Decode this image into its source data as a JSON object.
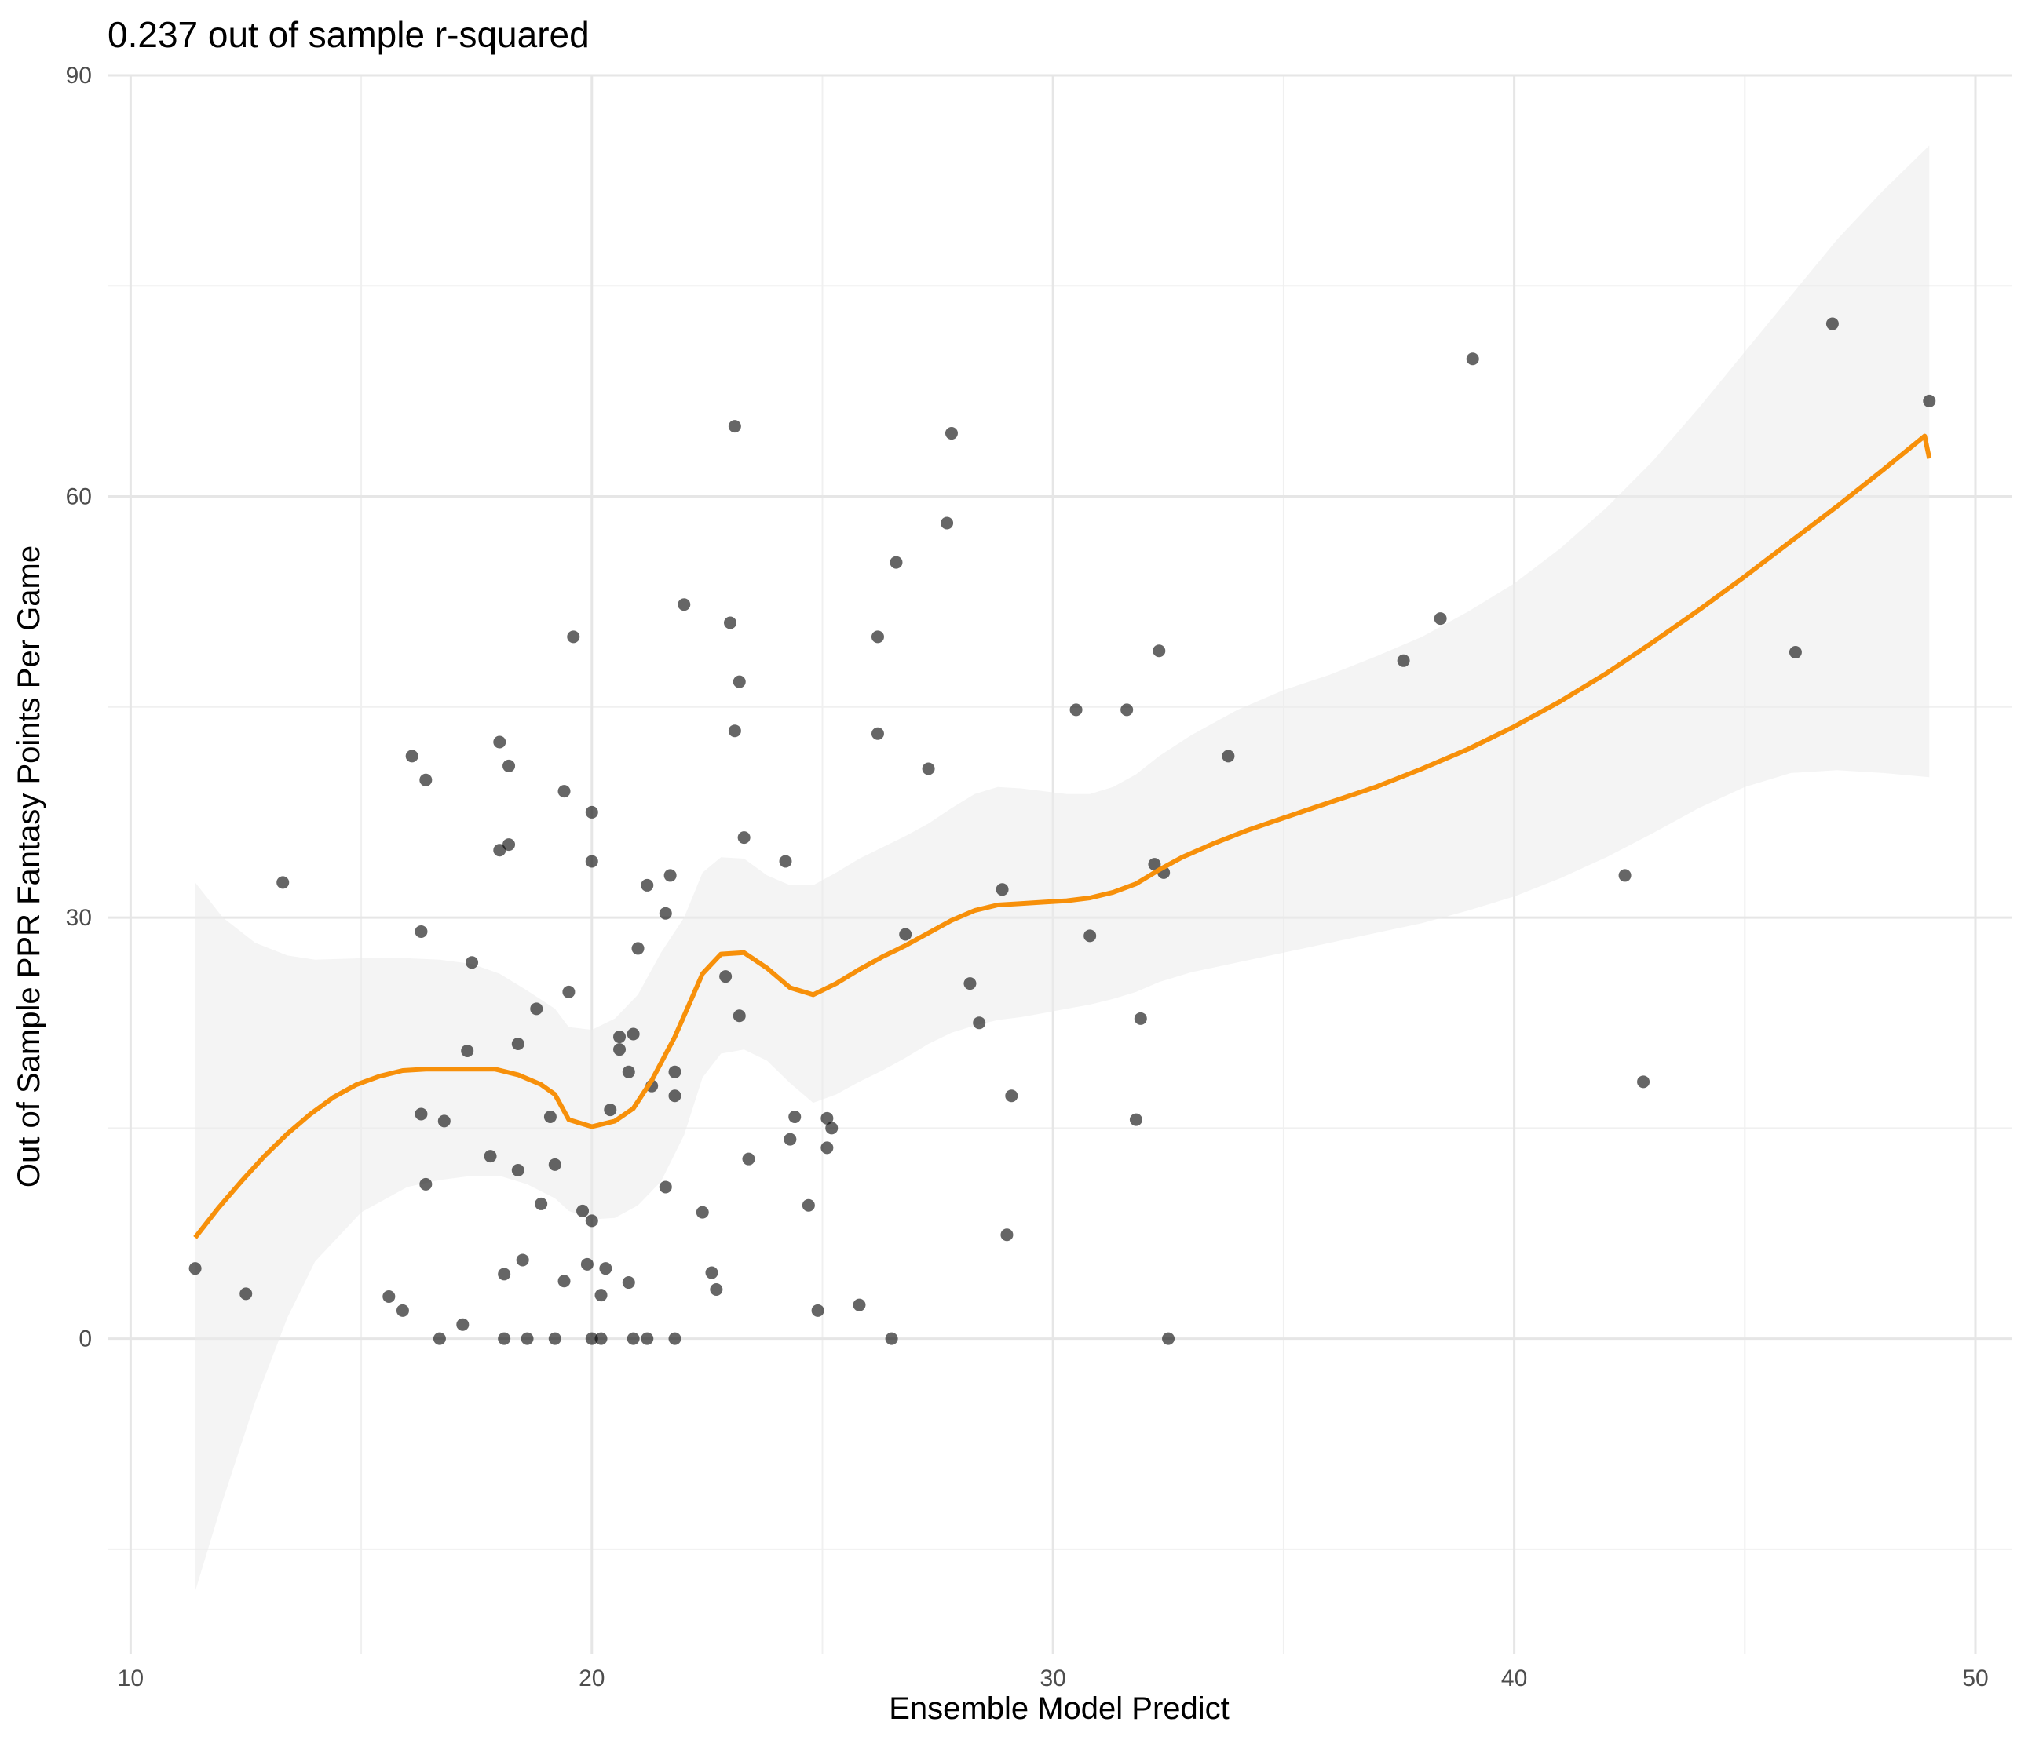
{
  "chart_data": {
    "type": "scatter",
    "title": "0.237 out of sample r-squared",
    "xlabel": "Ensemble Model Predict",
    "ylabel": "Out of Sample PPR Fantasy Points Per Game",
    "xlim": [
      9.5,
      50.8
    ],
    "ylim": [
      -22.5,
      90
    ],
    "x_ticks": [
      10,
      20,
      30,
      40,
      50
    ],
    "y_ticks": [
      0,
      30,
      60,
      90
    ],
    "x_minor": [
      15,
      25,
      35,
      45
    ],
    "y_minor": [
      -15,
      15,
      45,
      75
    ],
    "colors": {
      "point": "#000000",
      "smooth_line": "#f7900a",
      "ribbon": "#ebebeb",
      "grid_major": "#e6e6e6",
      "grid_minor": "#f0f0f0"
    },
    "points": [
      {
        "x": 11.4,
        "y": 5
      },
      {
        "x": 12.5,
        "y": 3.2
      },
      {
        "x": 13.3,
        "y": 32.5
      },
      {
        "x": 15.6,
        "y": 3
      },
      {
        "x": 15.9,
        "y": 2
      },
      {
        "x": 16.1,
        "y": 41.5
      },
      {
        "x": 16.3,
        "y": 29
      },
      {
        "x": 16.3,
        "y": 16
      },
      {
        "x": 16.4,
        "y": 39.8
      },
      {
        "x": 16.4,
        "y": 11
      },
      {
        "x": 16.7,
        "y": 0
      },
      {
        "x": 16.8,
        "y": 15.5
      },
      {
        "x": 17.2,
        "y": 1
      },
      {
        "x": 17.3,
        "y": 20.5
      },
      {
        "x": 17.4,
        "y": 26.8
      },
      {
        "x": 17.8,
        "y": 13
      },
      {
        "x": 18.0,
        "y": 42.5
      },
      {
        "x": 18.0,
        "y": 34.8
      },
      {
        "x": 18.1,
        "y": 0
      },
      {
        "x": 18.1,
        "y": 4.6
      },
      {
        "x": 18.2,
        "y": 40.8
      },
      {
        "x": 18.2,
        "y": 35.2
      },
      {
        "x": 18.4,
        "y": 21
      },
      {
        "x": 18.4,
        "y": 12
      },
      {
        "x": 18.5,
        "y": 5.6
      },
      {
        "x": 18.6,
        "y": 0
      },
      {
        "x": 18.8,
        "y": 23.5
      },
      {
        "x": 18.9,
        "y": 9.6
      },
      {
        "x": 19.1,
        "y": 15.8
      },
      {
        "x": 19.2,
        "y": 12.4
      },
      {
        "x": 19.2,
        "y": 0
      },
      {
        "x": 19.4,
        "y": 39
      },
      {
        "x": 19.4,
        "y": 4.1
      },
      {
        "x": 19.5,
        "y": 24.7
      },
      {
        "x": 19.6,
        "y": 50
      },
      {
        "x": 19.8,
        "y": 9.1
      },
      {
        "x": 19.9,
        "y": 5.3
      },
      {
        "x": 20.0,
        "y": 37.5
      },
      {
        "x": 20.0,
        "y": 34
      },
      {
        "x": 20.0,
        "y": 8.4
      },
      {
        "x": 20.0,
        "y": 0
      },
      {
        "x": 20.2,
        "y": 0
      },
      {
        "x": 20.2,
        "y": 3.1
      },
      {
        "x": 20.3,
        "y": 5
      },
      {
        "x": 20.4,
        "y": 16.3
      },
      {
        "x": 20.6,
        "y": 21.5
      },
      {
        "x": 20.6,
        "y": 20.6
      },
      {
        "x": 20.8,
        "y": 19
      },
      {
        "x": 20.8,
        "y": 4
      },
      {
        "x": 20.9,
        "y": 21.7
      },
      {
        "x": 20.9,
        "y": 0
      },
      {
        "x": 21.0,
        "y": 27.8
      },
      {
        "x": 21.2,
        "y": 0
      },
      {
        "x": 21.2,
        "y": 32.3
      },
      {
        "x": 21.3,
        "y": 18
      },
      {
        "x": 21.6,
        "y": 30.3
      },
      {
        "x": 21.6,
        "y": 10.8
      },
      {
        "x": 21.7,
        "y": 33
      },
      {
        "x": 21.8,
        "y": 19
      },
      {
        "x": 21.8,
        "y": 17.3
      },
      {
        "x": 21.8,
        "y": 0
      },
      {
        "x": 22.0,
        "y": 52.3
      },
      {
        "x": 22.4,
        "y": 9
      },
      {
        "x": 22.6,
        "y": 4.7
      },
      {
        "x": 22.7,
        "y": 3.5
      },
      {
        "x": 22.9,
        "y": 25.8
      },
      {
        "x": 23.0,
        "y": 51
      },
      {
        "x": 23.1,
        "y": 65
      },
      {
        "x": 23.2,
        "y": 46.8
      },
      {
        "x": 23.1,
        "y": 43.3
      },
      {
        "x": 23.2,
        "y": 23
      },
      {
        "x": 23.3,
        "y": 35.7
      },
      {
        "x": 23.4,
        "y": 12.8
      },
      {
        "x": 24.2,
        "y": 34
      },
      {
        "x": 24.4,
        "y": 15.8
      },
      {
        "x": 24.3,
        "y": 14.2
      },
      {
        "x": 24.7,
        "y": 9.5
      },
      {
        "x": 24.9,
        "y": 2
      },
      {
        "x": 25.1,
        "y": 15.7
      },
      {
        "x": 25.1,
        "y": 13.6
      },
      {
        "x": 25.2,
        "y": 15
      },
      {
        "x": 25.8,
        "y": 2.4
      },
      {
        "x": 26.2,
        "y": 50
      },
      {
        "x": 26.2,
        "y": 43.1
      },
      {
        "x": 26.5,
        "y": 0
      },
      {
        "x": 26.6,
        "y": 55.3
      },
      {
        "x": 26.8,
        "y": 28.8
      },
      {
        "x": 27.3,
        "y": 40.6
      },
      {
        "x": 27.7,
        "y": 58.1
      },
      {
        "x": 27.8,
        "y": 64.5
      },
      {
        "x": 28.2,
        "y": 25.3
      },
      {
        "x": 28.4,
        "y": 22.5
      },
      {
        "x": 28.9,
        "y": 32
      },
      {
        "x": 29.0,
        "y": 7.4
      },
      {
        "x": 29.1,
        "y": 17.3
      },
      {
        "x": 30.5,
        "y": 44.8
      },
      {
        "x": 30.8,
        "y": 28.7
      },
      {
        "x": 31.6,
        "y": 44.8
      },
      {
        "x": 31.8,
        "y": 15.6
      },
      {
        "x": 31.9,
        "y": 22.8
      },
      {
        "x": 32.2,
        "y": 33.8
      },
      {
        "x": 32.3,
        "y": 49
      },
      {
        "x": 32.4,
        "y": 33.2
      },
      {
        "x": 32.5,
        "y": 0
      },
      {
        "x": 33.8,
        "y": 41.5
      },
      {
        "x": 37.6,
        "y": 48.3
      },
      {
        "x": 38.4,
        "y": 51.3
      },
      {
        "x": 39.1,
        "y": 69.8
      },
      {
        "x": 42.4,
        "y": 33
      },
      {
        "x": 42.8,
        "y": 18.3
      },
      {
        "x": 46.1,
        "y": 48.9
      },
      {
        "x": 46.9,
        "y": 72.3
      },
      {
        "x": 49.0,
        "y": 66.8
      }
    ],
    "smooth_line": [
      {
        "x": 11.4,
        "y": 7.2
      },
      {
        "x": 11.9,
        "y": 9.3
      },
      {
        "x": 12.4,
        "y": 11.2
      },
      {
        "x": 12.9,
        "y": 13
      },
      {
        "x": 13.4,
        "y": 14.6
      },
      {
        "x": 13.9,
        "y": 16
      },
      {
        "x": 14.4,
        "y": 17.2
      },
      {
        "x": 14.9,
        "y": 18.1
      },
      {
        "x": 15.4,
        "y": 18.7
      },
      {
        "x": 15.9,
        "y": 19.1
      },
      {
        "x": 16.4,
        "y": 19.2
      },
      {
        "x": 16.9,
        "y": 19.2
      },
      {
        "x": 17.4,
        "y": 19.2
      },
      {
        "x": 17.9,
        "y": 19.2
      },
      {
        "x": 18.4,
        "y": 18.8
      },
      {
        "x": 18.9,
        "y": 18.1
      },
      {
        "x": 19.2,
        "y": 17.4
      },
      {
        "x": 19.5,
        "y": 15.6
      },
      {
        "x": 20.0,
        "y": 15.1
      },
      {
        "x": 20.5,
        "y": 15.5
      },
      {
        "x": 20.9,
        "y": 16.4
      },
      {
        "x": 21.3,
        "y": 18.4
      },
      {
        "x": 21.8,
        "y": 21.5
      },
      {
        "x": 22.4,
        "y": 26
      },
      {
        "x": 22.8,
        "y": 27.4
      },
      {
        "x": 23.3,
        "y": 27.5
      },
      {
        "x": 23.8,
        "y": 26.4
      },
      {
        "x": 24.3,
        "y": 25
      },
      {
        "x": 24.8,
        "y": 24.5
      },
      {
        "x": 25.3,
        "y": 25.3
      },
      {
        "x": 25.8,
        "y": 26.3
      },
      {
        "x": 26.3,
        "y": 27.2
      },
      {
        "x": 26.8,
        "y": 28
      },
      {
        "x": 27.3,
        "y": 28.9
      },
      {
        "x": 27.8,
        "y": 29.8
      },
      {
        "x": 28.3,
        "y": 30.5
      },
      {
        "x": 28.8,
        "y": 30.9
      },
      {
        "x": 29.3,
        "y": 31
      },
      {
        "x": 29.8,
        "y": 31.1
      },
      {
        "x": 30.3,
        "y": 31.2
      },
      {
        "x": 30.8,
        "y": 31.4
      },
      {
        "x": 31.3,
        "y": 31.8
      },
      {
        "x": 31.8,
        "y": 32.4
      },
      {
        "x": 32.3,
        "y": 33.4
      },
      {
        "x": 32.8,
        "y": 34.3
      },
      {
        "x": 33.5,
        "y": 35.3
      },
      {
        "x": 34.2,
        "y": 36.2
      },
      {
        "x": 35,
        "y": 37.1
      },
      {
        "x": 36,
        "y": 38.2
      },
      {
        "x": 37,
        "y": 39.3
      },
      {
        "x": 38,
        "y": 40.6
      },
      {
        "x": 39,
        "y": 42
      },
      {
        "x": 40,
        "y": 43.6
      },
      {
        "x": 41,
        "y": 45.4
      },
      {
        "x": 42,
        "y": 47.4
      },
      {
        "x": 43,
        "y": 49.6
      },
      {
        "x": 44,
        "y": 51.9
      },
      {
        "x": 45,
        "y": 54.3
      },
      {
        "x": 46,
        "y": 56.8
      },
      {
        "x": 47,
        "y": 59.3
      },
      {
        "x": 48,
        "y": 61.9
      },
      {
        "x": 48.9,
        "y": 64.3
      },
      {
        "x": 49.0,
        "y": 62.7
      }
    ],
    "ribbon_upper": [
      {
        "x": 11.4,
        "y": 32.5
      },
      {
        "x": 12,
        "y": 30
      },
      {
        "x": 12.7,
        "y": 28.2
      },
      {
        "x": 13.4,
        "y": 27.3
      },
      {
        "x": 14,
        "y": 27
      },
      {
        "x": 15,
        "y": 27.1
      },
      {
        "x": 16,
        "y": 27.1
      },
      {
        "x": 16.7,
        "y": 27
      },
      {
        "x": 17.4,
        "y": 26.7
      },
      {
        "x": 18,
        "y": 26
      },
      {
        "x": 18.6,
        "y": 24.8
      },
      {
        "x": 19.2,
        "y": 23.5
      },
      {
        "x": 19.5,
        "y": 22.2
      },
      {
        "x": 20,
        "y": 22
      },
      {
        "x": 20.5,
        "y": 22.8
      },
      {
        "x": 21,
        "y": 24.5
      },
      {
        "x": 21.5,
        "y": 27.5
      },
      {
        "x": 22,
        "y": 30
      },
      {
        "x": 22.4,
        "y": 33.2
      },
      {
        "x": 22.8,
        "y": 34.3
      },
      {
        "x": 23.3,
        "y": 34.2
      },
      {
        "x": 23.8,
        "y": 33
      },
      {
        "x": 24.3,
        "y": 32.3
      },
      {
        "x": 24.8,
        "y": 32.3
      },
      {
        "x": 25.3,
        "y": 33.2
      },
      {
        "x": 25.8,
        "y": 34.2
      },
      {
        "x": 26.3,
        "y": 35
      },
      {
        "x": 26.8,
        "y": 35.8
      },
      {
        "x": 27.3,
        "y": 36.7
      },
      {
        "x": 27.8,
        "y": 37.8
      },
      {
        "x": 28.3,
        "y": 38.8
      },
      {
        "x": 28.8,
        "y": 39.3
      },
      {
        "x": 29.3,
        "y": 39.2
      },
      {
        "x": 29.8,
        "y": 39
      },
      {
        "x": 30.3,
        "y": 38.8
      },
      {
        "x": 30.8,
        "y": 38.8
      },
      {
        "x": 31.3,
        "y": 39.3
      },
      {
        "x": 31.8,
        "y": 40.2
      },
      {
        "x": 32.3,
        "y": 41.5
      },
      {
        "x": 33,
        "y": 43
      },
      {
        "x": 34,
        "y": 44.8
      },
      {
        "x": 35,
        "y": 46.2
      },
      {
        "x": 36,
        "y": 47.3
      },
      {
        "x": 37,
        "y": 48.6
      },
      {
        "x": 38,
        "y": 50
      },
      {
        "x": 39,
        "y": 51.8
      },
      {
        "x": 40,
        "y": 53.8
      },
      {
        "x": 41,
        "y": 56.3
      },
      {
        "x": 42,
        "y": 59.2
      },
      {
        "x": 43,
        "y": 62.5
      },
      {
        "x": 44,
        "y": 66.3
      },
      {
        "x": 45,
        "y": 70.3
      },
      {
        "x": 46,
        "y": 74.3
      },
      {
        "x": 47,
        "y": 78.3
      },
      {
        "x": 48,
        "y": 81.8
      },
      {
        "x": 49.0,
        "y": 85
      }
    ],
    "ribbon_lower": [
      {
        "x": 11.4,
        "y": -18
      },
      {
        "x": 12,
        "y": -11.5
      },
      {
        "x": 12.7,
        "y": -4.5
      },
      {
        "x": 13.4,
        "y": 1.5
      },
      {
        "x": 14,
        "y": 5.5
      },
      {
        "x": 15,
        "y": 9
      },
      {
        "x": 16,
        "y": 10.8
      },
      {
        "x": 16.7,
        "y": 11.3
      },
      {
        "x": 17.4,
        "y": 11.6
      },
      {
        "x": 18,
        "y": 11.6
      },
      {
        "x": 18.6,
        "y": 11
      },
      {
        "x": 19.2,
        "y": 10
      },
      {
        "x": 19.5,
        "y": 9.1
      },
      {
        "x": 20,
        "y": 8.5
      },
      {
        "x": 20.5,
        "y": 8.6
      },
      {
        "x": 21,
        "y": 9.5
      },
      {
        "x": 21.5,
        "y": 11.2
      },
      {
        "x": 22,
        "y": 14.5
      },
      {
        "x": 22.4,
        "y": 18.6
      },
      {
        "x": 22.8,
        "y": 20.3
      },
      {
        "x": 23.3,
        "y": 20.6
      },
      {
        "x": 23.8,
        "y": 19.8
      },
      {
        "x": 24.3,
        "y": 18.2
      },
      {
        "x": 24.8,
        "y": 16.8
      },
      {
        "x": 25.3,
        "y": 17.4
      },
      {
        "x": 25.8,
        "y": 18.3
      },
      {
        "x": 26.3,
        "y": 19.1
      },
      {
        "x": 26.8,
        "y": 20
      },
      {
        "x": 27.3,
        "y": 21
      },
      {
        "x": 27.8,
        "y": 21.8
      },
      {
        "x": 28.3,
        "y": 22.3
      },
      {
        "x": 28.8,
        "y": 22.7
      },
      {
        "x": 29.3,
        "y": 22.9
      },
      {
        "x": 29.8,
        "y": 23.2
      },
      {
        "x": 30.3,
        "y": 23.5
      },
      {
        "x": 30.8,
        "y": 23.8
      },
      {
        "x": 31.3,
        "y": 24.2
      },
      {
        "x": 31.8,
        "y": 24.7
      },
      {
        "x": 32.3,
        "y": 25.4
      },
      {
        "x": 33,
        "y": 26.1
      },
      {
        "x": 34,
        "y": 26.8
      },
      {
        "x": 35,
        "y": 27.5
      },
      {
        "x": 36,
        "y": 28.2
      },
      {
        "x": 37,
        "y": 28.9
      },
      {
        "x": 38,
        "y": 29.6
      },
      {
        "x": 39,
        "y": 30.5
      },
      {
        "x": 40,
        "y": 31.5
      },
      {
        "x": 41,
        "y": 32.8
      },
      {
        "x": 42,
        "y": 34.3
      },
      {
        "x": 43,
        "y": 36
      },
      {
        "x": 44,
        "y": 37.8
      },
      {
        "x": 45,
        "y": 39.3
      },
      {
        "x": 46,
        "y": 40.3
      },
      {
        "x": 47,
        "y": 40.5
      },
      {
        "x": 48,
        "y": 40.3
      },
      {
        "x": 49.0,
        "y": 40
      }
    ]
  }
}
